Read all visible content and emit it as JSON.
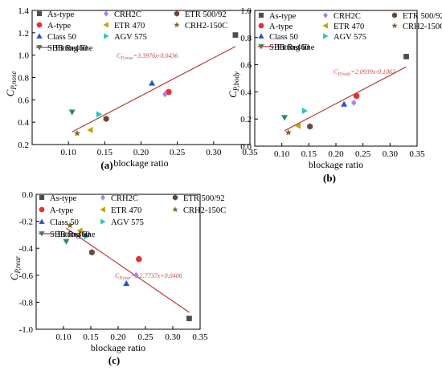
{
  "chart_data": [
    {
      "panel_label": "(a)",
      "type": "scatter",
      "xlabel": "blockage ratio",
      "ylabel_main": "C",
      "ylabel_sub": "P,nose",
      "xlim": [
        0.05,
        0.35
      ],
      "ylim": [
        0.2,
        1.4
      ],
      "xticks": [
        "0.10",
        "0.15",
        "0.20",
        "0.25",
        "0.30",
        "0.35"
      ],
      "xtick_values": [
        0.1,
        0.15,
        0.2,
        0.25,
        0.3,
        0.35
      ],
      "yticks": [
        "0.2",
        "0.4",
        "0.6",
        "0.8",
        "1.0",
        "1.2",
        "1.4"
      ],
      "ytick_values": [
        0.2,
        0.4,
        0.6,
        0.8,
        1.0,
        1.2,
        1.4
      ],
      "equation": "C_{P,nose}=3.3976x-0.0436",
      "fit": {
        "slope": 3.3976,
        "intercept": -0.0436,
        "x_range": [
          0.105,
          0.33
        ]
      },
      "legend_placement": "top",
      "series": [
        {
          "name": "As-type",
          "x": 0.33,
          "y": 1.18
        },
        {
          "name": "A-type",
          "x": 0.238,
          "y": 0.67
        },
        {
          "name": "Class 50",
          "x": 0.215,
          "y": 0.75
        },
        {
          "name": "SBB Re460",
          "x": 0.105,
          "y": 0.49
        },
        {
          "name": "CRH2C",
          "x": 0.233,
          "y": 0.65
        },
        {
          "name": "ETR 470",
          "x": 0.13,
          "y": 0.33
        },
        {
          "name": "AGV 575",
          "x": 0.142,
          "y": 0.47
        },
        {
          "name": "ETR 500/92",
          "x": 0.152,
          "y": 0.43
        },
        {
          "name": "CRH2-150C",
          "x": 0.112,
          "y": 0.3
        }
      ]
    },
    {
      "panel_label": "(b)",
      "type": "scatter",
      "xlabel": "blockage ratio",
      "ylabel_main": "C",
      "ylabel_sub": "P,body",
      "xlim": [
        0.05,
        0.35
      ],
      "ylim": [
        0.0,
        1.0
      ],
      "xticks": [
        "0.10",
        "0.15",
        "0.20",
        "0.25",
        "0.30",
        "0.35"
      ],
      "xtick_values": [
        0.1,
        0.15,
        0.2,
        0.25,
        0.3,
        0.35
      ],
      "yticks": [
        "0.0",
        "0.2",
        "0.4",
        "0.6",
        "0.8",
        "1.0"
      ],
      "ytick_values": [
        0.0,
        0.2,
        0.4,
        0.6,
        0.8,
        1.0
      ],
      "equation": "C_{P,body}=2.0939x-0.1062",
      "fit": {
        "slope": 2.0939,
        "intercept": -0.1062,
        "x_range": [
          0.105,
          0.33
        ]
      },
      "legend_placement": "top",
      "series": [
        {
          "name": "As-type",
          "x": 0.33,
          "y": 0.66
        },
        {
          "name": "A-type",
          "x": 0.238,
          "y": 0.37
        },
        {
          "name": "Class 50",
          "x": 0.215,
          "y": 0.31
        },
        {
          "name": "SBB Re460",
          "x": 0.105,
          "y": 0.21
        },
        {
          "name": "CRH2C",
          "x": 0.233,
          "y": 0.32
        },
        {
          "name": "ETR 470",
          "x": 0.13,
          "y": 0.15
        },
        {
          "name": "AGV 575",
          "x": 0.142,
          "y": 0.26
        },
        {
          "name": "ETR 500/92",
          "x": 0.152,
          "y": 0.145
        },
        {
          "name": "CRH2-150C",
          "x": 0.112,
          "y": 0.1
        }
      ]
    },
    {
      "panel_label": "(c)",
      "type": "scatter",
      "xlabel": "blockage ratio",
      "ylabel_main": "C",
      "ylabel_sub": "P,rear",
      "xlim": [
        0.05,
        0.35
      ],
      "ylim": [
        -1.0,
        0.0
      ],
      "xticks": [
        "0.10",
        "0.15",
        "0.20",
        "0.25",
        "0.30",
        "0.35"
      ],
      "xtick_values": [
        0.1,
        0.15,
        0.2,
        0.25,
        0.3,
        0.35
      ],
      "yticks": [
        "-1.0",
        "-0.8",
        "-0.6",
        "-0.4",
        "-0.2",
        "0.0"
      ],
      "ytick_values": [
        -1.0,
        -0.8,
        -0.6,
        -0.4,
        -0.2,
        0.0
      ],
      "equation": "C_{P,rear}=−2.7737x+0.0406",
      "fit": {
        "slope": -2.7737,
        "intercept": 0.0406,
        "x_range": [
          0.105,
          0.33
        ]
      },
      "legend_placement": "top",
      "series": [
        {
          "name": "As-type",
          "x": 0.33,
          "y": -0.92
        },
        {
          "name": "A-type",
          "x": 0.238,
          "y": -0.48
        },
        {
          "name": "Class 50",
          "x": 0.215,
          "y": -0.66
        },
        {
          "name": "SBB Re460",
          "x": 0.105,
          "y": -0.35
        },
        {
          "name": "CRH2C",
          "x": 0.233,
          "y": -0.6
        },
        {
          "name": "ETR 470",
          "x": 0.13,
          "y": -0.27
        },
        {
          "name": "AGV 575",
          "x": 0.142,
          "y": -0.31
        },
        {
          "name": "ETR 500/92",
          "x": 0.152,
          "y": -0.43
        },
        {
          "name": "CRH2-150C",
          "x": 0.112,
          "y": -0.23
        }
      ]
    }
  ],
  "legend": {
    "entries": [
      {
        "label": "As-type",
        "marker": "square",
        "color": "#4d4d4d"
      },
      {
        "label": "A-type",
        "marker": "circle",
        "color": "#e8312f"
      },
      {
        "label": "Class 50",
        "marker": "triangle-up",
        "color": "#2a4fd6"
      },
      {
        "label": "SBB Re460",
        "marker": "triangle-down",
        "color": "#2e8b57"
      },
      {
        "label": "CRH2C",
        "marker": "diamond",
        "color": "#b07cf0"
      },
      {
        "label": "ETR 470",
        "marker": "triangle-left",
        "color": "#c8a000"
      },
      {
        "label": "AGV 575",
        "marker": "triangle-right",
        "color": "#27c4c4"
      },
      {
        "label": "ETR 500/92",
        "marker": "hexagon",
        "color": "#6b4a3a"
      },
      {
        "label": "CRH2-150C",
        "marker": "star",
        "color": "#7a6a2a"
      },
      {
        "label": "Fitting line",
        "marker": "line",
        "color": "#b83a3a"
      }
    ]
  },
  "colors": {
    "fit_line": "#b83a3a",
    "equation_text": "#d44a4a",
    "axis": "#000000"
  }
}
